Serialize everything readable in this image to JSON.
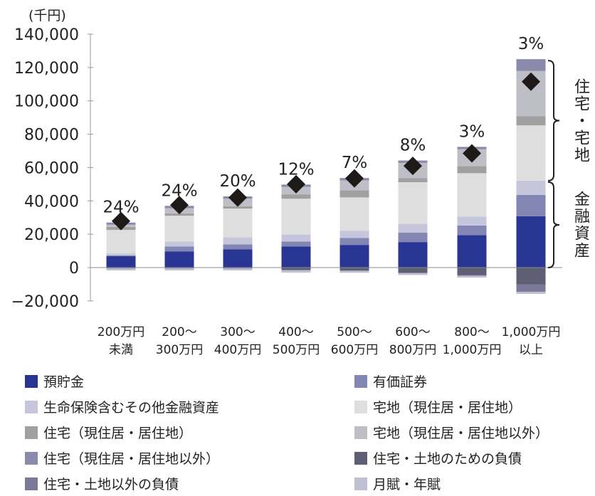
{
  "chart_data": {
    "type": "bar",
    "stacked": true,
    "unit_label": "(千円)",
    "ylim": [
      -20000,
      140000
    ],
    "yticks": [
      -20000,
      0,
      20000,
      40000,
      60000,
      80000,
      100000,
      120000,
      140000
    ],
    "ytick_labels": [
      "−20,000",
      "0",
      "20,000",
      "40,000",
      "60,000",
      "80,000",
      "100,000",
      "120,000",
      "140,000"
    ],
    "categories": [
      [
        "200万円",
        "未満"
      ],
      [
        "200～",
        "300万円"
      ],
      [
        "300～",
        "400万円"
      ],
      [
        "400～",
        "500万円"
      ],
      [
        "500～",
        "600万円"
      ],
      [
        "600～",
        "800万円"
      ],
      [
        "800～",
        "1,000万円"
      ],
      [
        "1,000万円",
        "以上"
      ]
    ],
    "bar_labels": [
      "24%",
      "24%",
      "20%",
      "12%",
      "7%",
      "8%",
      "3%",
      "3%"
    ],
    "series": [
      {
        "name": "預貯金",
        "color": "#283593",
        "values": [
          6800,
          9600,
          11000,
          12700,
          13600,
          15300,
          19500,
          30800
        ]
      },
      {
        "name": "有価証券",
        "color": "#8386b3",
        "values": [
          500,
          3000,
          2900,
          2900,
          4200,
          5600,
          5700,
          12800
        ]
      },
      {
        "name": "生命保険含むその他金融資産",
        "color": "#c5c6dc",
        "values": [
          1200,
          3000,
          4200,
          4200,
          4300,
          5300,
          5400,
          8500
        ]
      },
      {
        "name": "宅地（現住居・居住地）",
        "color": "#dedede",
        "values": [
          14100,
          15500,
          17300,
          21500,
          20000,
          25000,
          26000,
          33200
        ]
      },
      {
        "name": "住宅（現住居・居住地）",
        "color": "#a0a0a0",
        "values": [
          1800,
          1400,
          1400,
          2600,
          4300,
          2500,
          4200,
          5400
        ]
      },
      {
        "name": "宅地（現住居・居住地以外）",
        "color": "#bebec6",
        "values": [
          1300,
          3100,
          4500,
          4500,
          5900,
          9100,
          10200,
          27200
        ]
      },
      {
        "name": "住宅（現住居・居住地以外）",
        "color": "#8a8aac",
        "values": [
          1300,
          1400,
          1400,
          1400,
          1400,
          1400,
          1400,
          7100
        ]
      },
      {
        "name": "住宅・土地のための負債",
        "color": "#5e5e74",
        "values": [
          -300,
          -300,
          -300,
          -1400,
          -1700,
          -3100,
          -4500,
          -10200
        ]
      },
      {
        "name": "住宅・土地以外の負債",
        "color": "#7a7a98",
        "values": [
          -300,
          -300,
          -300,
          -300,
          -300,
          -300,
          -400,
          -4300
        ]
      },
      {
        "name": "月賦・年賦",
        "color": "#c0c0d4",
        "values": [
          -1100,
          -1100,
          -1100,
          -1300,
          -1100,
          -1100,
          -1100,
          -1300
        ]
      }
    ],
    "markers": {
      "shape": "diamond",
      "color": "#1e1a17",
      "values": [
        27900,
        37500,
        42000,
        50000,
        53500,
        61000,
        68500,
        111500
      ]
    },
    "brackets": [
      {
        "label": "住宅・宅地",
        "range": [
          52100,
          125000
        ]
      },
      {
        "label": "金融資産",
        "range": [
          0,
          52100
        ]
      }
    ],
    "legend": {
      "placement": "bottom",
      "left": [
        "預貯金",
        "生命保険含むその他金融資産",
        "住宅（現住居・居住地）",
        "住宅（現住居・居住地以外）",
        "住宅・土地以外の負債"
      ],
      "right": [
        "有価証券",
        "宅地（現住居・居住地）",
        "宅地（現住居・居住地以外）",
        "住宅・土地のための負債",
        "月賦・年賦"
      ]
    },
    "grid": false
  }
}
